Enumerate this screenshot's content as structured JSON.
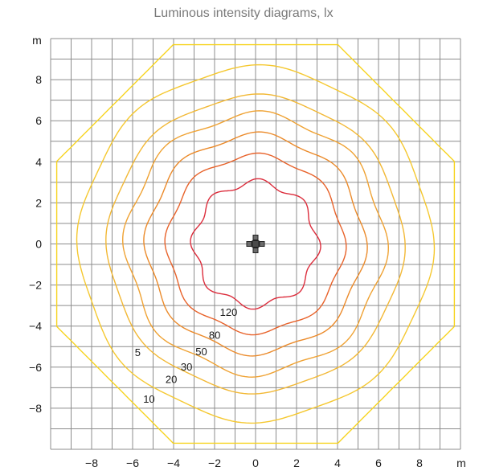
{
  "chart_data": {
    "type": "contour",
    "title": "Luminous intensity diagrams, lx",
    "x_unit": "m",
    "y_unit": "m",
    "xlim": [
      -10,
      10
    ],
    "ylim": [
      -10,
      10
    ],
    "grid": true,
    "grid_step": 1,
    "x_ticks": [
      -8,
      -6,
      -4,
      -2,
      0,
      2,
      4,
      6,
      8
    ],
    "y_ticks": [
      8,
      6,
      4,
      2,
      0,
      -2,
      -4,
      -6,
      -8
    ],
    "x_tick_labels": [
      "−8",
      "−6",
      "−4",
      "−2",
      "0",
      "2",
      "4",
      "6",
      "8"
    ],
    "y_tick_labels": [
      "8",
      "6",
      "4",
      "2",
      "0",
      "−2",
      "−4",
      "−6",
      "−8"
    ],
    "contours": [
      {
        "label": "120",
        "value": 120,
        "radius": 3.0,
        "color": "#dc2d3c"
      },
      {
        "label": "80",
        "value": 80,
        "radius": 4.3,
        "color": "#e8622a"
      },
      {
        "label": "50",
        "value": 50,
        "radius": 5.3,
        "color": "#eb8a2a"
      },
      {
        "label": "30",
        "value": 30,
        "radius": 6.3,
        "color": "#efa233"
      },
      {
        "label": "20",
        "value": 20,
        "radius": 7.2,
        "color": "#f2b835"
      },
      {
        "label": "10",
        "value": 10,
        "radius": 8.6,
        "color": "#f5c830"
      },
      {
        "label": "5",
        "value": 5,
        "radius": 10.5,
        "color": "#f7d421"
      }
    ],
    "source_marker": {
      "x": 0,
      "y": 0
    }
  }
}
